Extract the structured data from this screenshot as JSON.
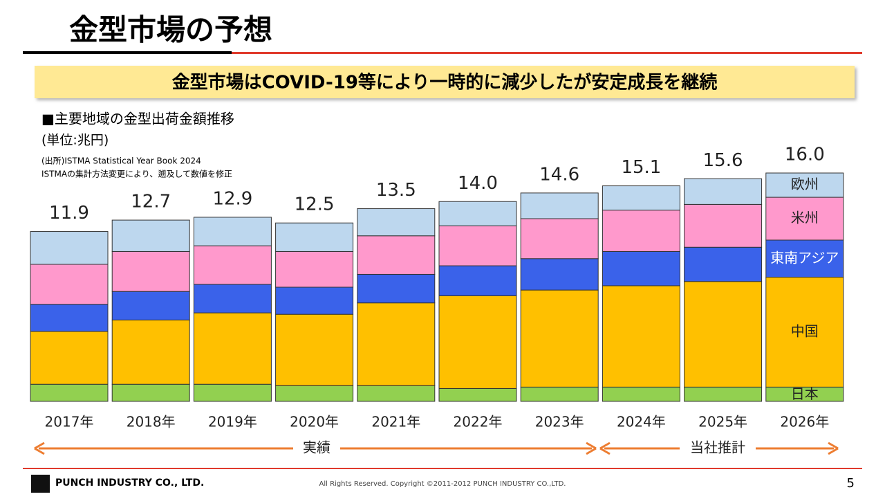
{
  "header": {
    "title": "金型市場の予想",
    "banner": "金型市場はCOVID-19等により一時的に減少したが安定成長を継続"
  },
  "chart_data": {
    "type": "bar",
    "stacked": true,
    "title": "■主要地域の金型出荷金額推移",
    "unit": "(単位:兆円)",
    "source": [
      "(出所)ISTMA Statistical Year Book 2024",
      "ISTMAの集計方法変更により、遡及して数値を修正"
    ],
    "categories": [
      "2017年",
      "2018年",
      "2019年",
      "2020年",
      "2021年",
      "2022年",
      "2023年",
      "2024年",
      "2025年",
      "2026年"
    ],
    "series": [
      {
        "name": "日本",
        "color": "#92d050",
        "values": [
          1.2,
          1.2,
          1.2,
          1.1,
          1.1,
          0.9,
          1.0,
          1.0,
          1.0,
          1.0
        ]
      },
      {
        "name": "中国",
        "color": "#ffc000",
        "values": [
          3.7,
          4.5,
          5.0,
          5.0,
          5.8,
          6.5,
          6.8,
          7.1,
          7.4,
          7.7
        ]
      },
      {
        "name": "東南アジア",
        "color": "#3a62ea",
        "values": [
          1.9,
          2.0,
          2.0,
          1.9,
          2.0,
          2.1,
          2.2,
          2.4,
          2.4,
          2.6
        ]
      },
      {
        "name": "米州",
        "color": "#ff99cc",
        "values": [
          2.8,
          2.8,
          2.7,
          2.5,
          2.7,
          2.8,
          2.8,
          2.9,
          3.0,
          3.0
        ]
      },
      {
        "name": "欧州",
        "color": "#bdd7ee",
        "values": [
          2.3,
          2.2,
          2.0,
          2.0,
          1.9,
          1.7,
          1.8,
          1.7,
          1.8,
          1.7
        ]
      }
    ],
    "totals": [
      11.9,
      12.7,
      12.9,
      12.5,
      13.5,
      14.0,
      14.6,
      15.1,
      15.6,
      16.0
    ],
    "total_labels": [
      "11.9",
      "12.7",
      "12.9",
      "12.5",
      "13.5",
      "14.0",
      "14.6",
      "15.1",
      "15.6",
      "16.0"
    ],
    "periods": [
      "実績",
      "当社推計"
    ]
  },
  "footer": {
    "company": "PUNCH INDUSTRY CO., LTD.",
    "copyright": "All Rights Reserved. Copyright ©2011-2012  PUNCH  INDUSTRY  CO.,LTD.",
    "page": "5"
  }
}
